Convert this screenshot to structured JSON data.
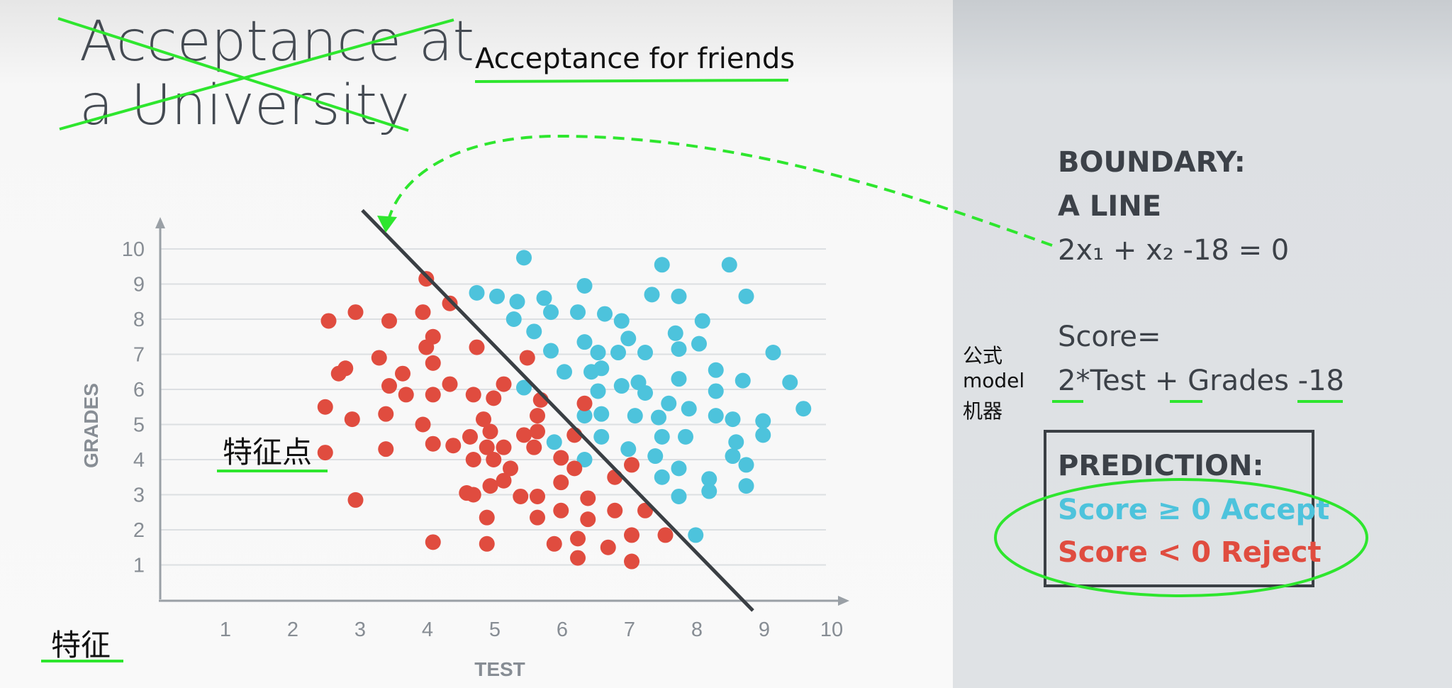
{
  "colors": {
    "accept": "#4dc3dc",
    "reject": "#e04c3f",
    "annotation": "#2ee62e",
    "boundary": "#3a3f44",
    "text": "#3c4148"
  },
  "title": {
    "line1": "Acceptance at",
    "line2": "a University",
    "replacement": "Acceptance for friends"
  },
  "annotations": {
    "feature_point": "特征点",
    "feature": "特征",
    "formula_label_1": "公式",
    "formula_label_2": "model",
    "formula_label_3": "机器"
  },
  "panel": {
    "boundary_title": "BOUNDARY:",
    "boundary_sub": "A LINE",
    "equation": "2x₁ + x₂ -18 = 0",
    "score_label": "Score=",
    "score_formula": "2*Test + Grades -18",
    "prediction_title": "PREDICTION:",
    "accept_rule": "Score ≥ 0 Accept",
    "reject_rule": "Score < 0 Reject"
  },
  "chart_data": {
    "type": "scatter",
    "xlabel": "TEST",
    "ylabel": "GRADES",
    "xlim": [
      0,
      10
    ],
    "ylim": [
      0,
      10
    ],
    "xticks": [
      "1",
      "2",
      "3",
      "4",
      "5",
      "6",
      "7",
      "8",
      "9",
      "10"
    ],
    "yticks": [
      "1",
      "2",
      "3",
      "4",
      "5",
      "6",
      "7",
      "8",
      "9",
      "10"
    ],
    "grid": "horizontal",
    "boundary_line": {
      "from": [
        3.0,
        11.1
      ],
      "to": [
        8.8,
        -0.3
      ]
    },
    "series": [
      {
        "label": "accept",
        "points": [
          [
            5.4,
            9.75
          ],
          [
            6.3,
            8.95
          ],
          [
            7.45,
            9.55
          ],
          [
            8.45,
            9.55
          ],
          [
            4.7,
            8.75
          ],
          [
            5.0,
            8.65
          ],
          [
            5.3,
            8.5
          ],
          [
            5.7,
            8.6
          ],
          [
            7.3,
            8.7
          ],
          [
            7.7,
            8.65
          ],
          [
            8.7,
            8.65
          ],
          [
            5.8,
            8.2
          ],
          [
            6.2,
            8.2
          ],
          [
            6.6,
            8.15
          ],
          [
            5.25,
            8.0
          ],
          [
            6.85,
            7.95
          ],
          [
            8.05,
            7.95
          ],
          [
            5.55,
            7.65
          ],
          [
            7.65,
            7.6
          ],
          [
            6.3,
            7.35
          ],
          [
            6.95,
            7.45
          ],
          [
            8.0,
            7.3
          ],
          [
            5.8,
            7.1
          ],
          [
            6.5,
            7.05
          ],
          [
            6.8,
            7.05
          ],
          [
            7.2,
            7.05
          ],
          [
            7.7,
            7.15
          ],
          [
            6.4,
            6.5
          ],
          [
            6.0,
            6.5
          ],
          [
            6.55,
            6.6
          ],
          [
            9.1,
            7.05
          ],
          [
            7.1,
            6.2
          ],
          [
            6.85,
            6.1
          ],
          [
            7.2,
            5.9
          ],
          [
            7.7,
            6.3
          ],
          [
            8.25,
            6.55
          ],
          [
            8.65,
            6.25
          ],
          [
            9.35,
            6.2
          ],
          [
            6.5,
            5.95
          ],
          [
            5.4,
            6.05
          ],
          [
            8.25,
            5.95
          ],
          [
            7.55,
            5.6
          ],
          [
            6.55,
            5.3
          ],
          [
            6.3,
            5.25
          ],
          [
            7.05,
            5.25
          ],
          [
            7.85,
            5.45
          ],
          [
            8.25,
            5.25
          ],
          [
            8.5,
            5.15
          ],
          [
            8.95,
            5.1
          ],
          [
            9.55,
            5.45
          ],
          [
            7.4,
            5.2
          ],
          [
            7.45,
            4.65
          ],
          [
            7.8,
            4.65
          ],
          [
            8.55,
            4.5
          ],
          [
            8.95,
            4.7
          ],
          [
            5.85,
            4.5
          ],
          [
            6.55,
            4.65
          ],
          [
            6.3,
            4.0
          ],
          [
            6.95,
            4.3
          ],
          [
            7.35,
            4.1
          ],
          [
            8.5,
            4.1
          ],
          [
            8.7,
            3.85
          ],
          [
            7.45,
            3.5
          ],
          [
            7.7,
            3.75
          ],
          [
            8.15,
            3.45
          ],
          [
            8.7,
            3.25
          ],
          [
            7.7,
            2.95
          ],
          [
            8.15,
            3.1
          ],
          [
            7.95,
            1.85
          ]
        ]
      },
      {
        "label": "reject",
        "points": [
          [
            3.95,
            9.15
          ],
          [
            4.3,
            8.45
          ],
          [
            2.9,
            8.2
          ],
          [
            2.5,
            7.95
          ],
          [
            3.4,
            7.95
          ],
          [
            3.9,
            8.2
          ],
          [
            4.05,
            7.5
          ],
          [
            4.7,
            7.2
          ],
          [
            3.95,
            7.2
          ],
          [
            5.45,
            6.9
          ],
          [
            3.25,
            6.9
          ],
          [
            4.05,
            6.75
          ],
          [
            2.75,
            6.6
          ],
          [
            2.65,
            6.45
          ],
          [
            3.6,
            6.45
          ],
          [
            3.4,
            6.1
          ],
          [
            4.3,
            6.15
          ],
          [
            5.1,
            6.15
          ],
          [
            3.65,
            5.85
          ],
          [
            4.05,
            5.85
          ],
          [
            4.65,
            5.85
          ],
          [
            4.95,
            5.75
          ],
          [
            5.65,
            5.7
          ],
          [
            6.3,
            5.6
          ],
          [
            2.45,
            5.5
          ],
          [
            3.35,
            5.3
          ],
          [
            5.6,
            5.25
          ],
          [
            2.85,
            5.15
          ],
          [
            3.9,
            5.0
          ],
          [
            4.8,
            5.15
          ],
          [
            4.9,
            4.8
          ],
          [
            5.4,
            4.7
          ],
          [
            5.6,
            4.8
          ],
          [
            6.15,
            4.7
          ],
          [
            4.6,
            4.65
          ],
          [
            4.05,
            4.45
          ],
          [
            4.35,
            4.4
          ],
          [
            4.85,
            4.35
          ],
          [
            5.1,
            4.35
          ],
          [
            5.55,
            4.35
          ],
          [
            2.45,
            4.2
          ],
          [
            3.35,
            4.3
          ],
          [
            4.65,
            4.0
          ],
          [
            4.95,
            4.0
          ],
          [
            5.95,
            4.05
          ],
          [
            7.0,
            3.85
          ],
          [
            5.2,
            3.75
          ],
          [
            6.15,
            3.75
          ],
          [
            4.9,
            3.25
          ],
          [
            5.1,
            3.4
          ],
          [
            5.95,
            3.35
          ],
          [
            6.75,
            3.5
          ],
          [
            4.55,
            3.05
          ],
          [
            4.65,
            3.0
          ],
          [
            5.35,
            2.95
          ],
          [
            5.6,
            2.95
          ],
          [
            6.35,
            2.9
          ],
          [
            2.9,
            2.85
          ],
          [
            5.95,
            2.55
          ],
          [
            6.75,
            2.55
          ],
          [
            7.2,
            2.55
          ],
          [
            4.85,
            2.35
          ],
          [
            5.6,
            2.35
          ],
          [
            6.35,
            2.3
          ],
          [
            7.0,
            1.85
          ],
          [
            7.5,
            1.85
          ],
          [
            6.2,
            1.75
          ],
          [
            4.05,
            1.65
          ],
          [
            4.85,
            1.6
          ],
          [
            5.85,
            1.6
          ],
          [
            6.65,
            1.5
          ],
          [
            6.2,
            1.2
          ],
          [
            7.0,
            1.1
          ]
        ]
      }
    ]
  }
}
